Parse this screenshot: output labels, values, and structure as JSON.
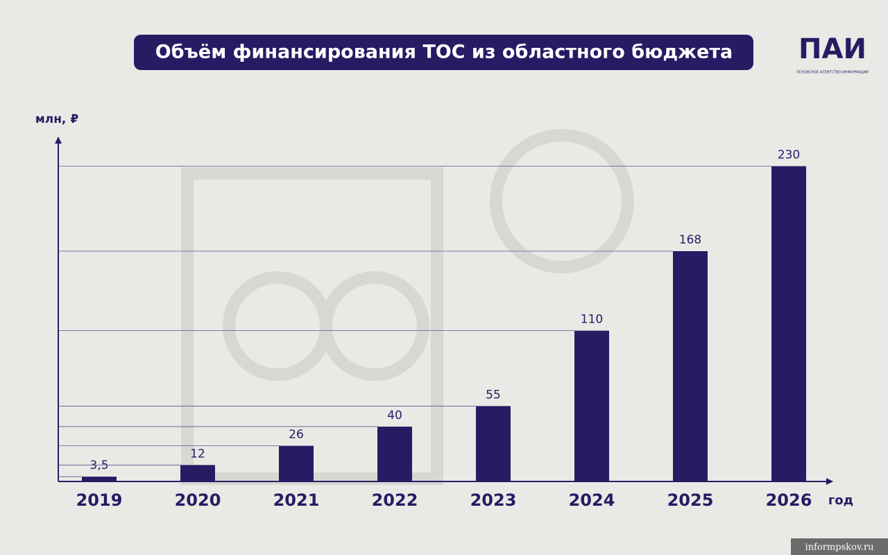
{
  "chart_data": {
    "type": "bar",
    "title": "Объём финансирования ТОС из областного бюджета",
    "y_label": "млн, ₽",
    "x_label": "год",
    "categories": [
      "2019",
      "2020",
      "2021",
      "2022",
      "2023",
      "2024",
      "2025",
      "2026"
    ],
    "values": [
      3.5,
      12,
      26,
      40,
      55,
      110,
      168,
      230
    ],
    "value_labels": [
      "3,5",
      "12",
      "26",
      "40",
      "55",
      "110",
      "168",
      "230"
    ],
    "color": "#261c64",
    "ylim": [
      0,
      250
    ],
    "guide_lines": true
  },
  "logo": {
    "name": "ПАИ",
    "subtitle": "ПСКОВСКОЕ АГЕНТСТВО ИНФОРМАЦИИ"
  },
  "watermark": "informpskov.ru"
}
